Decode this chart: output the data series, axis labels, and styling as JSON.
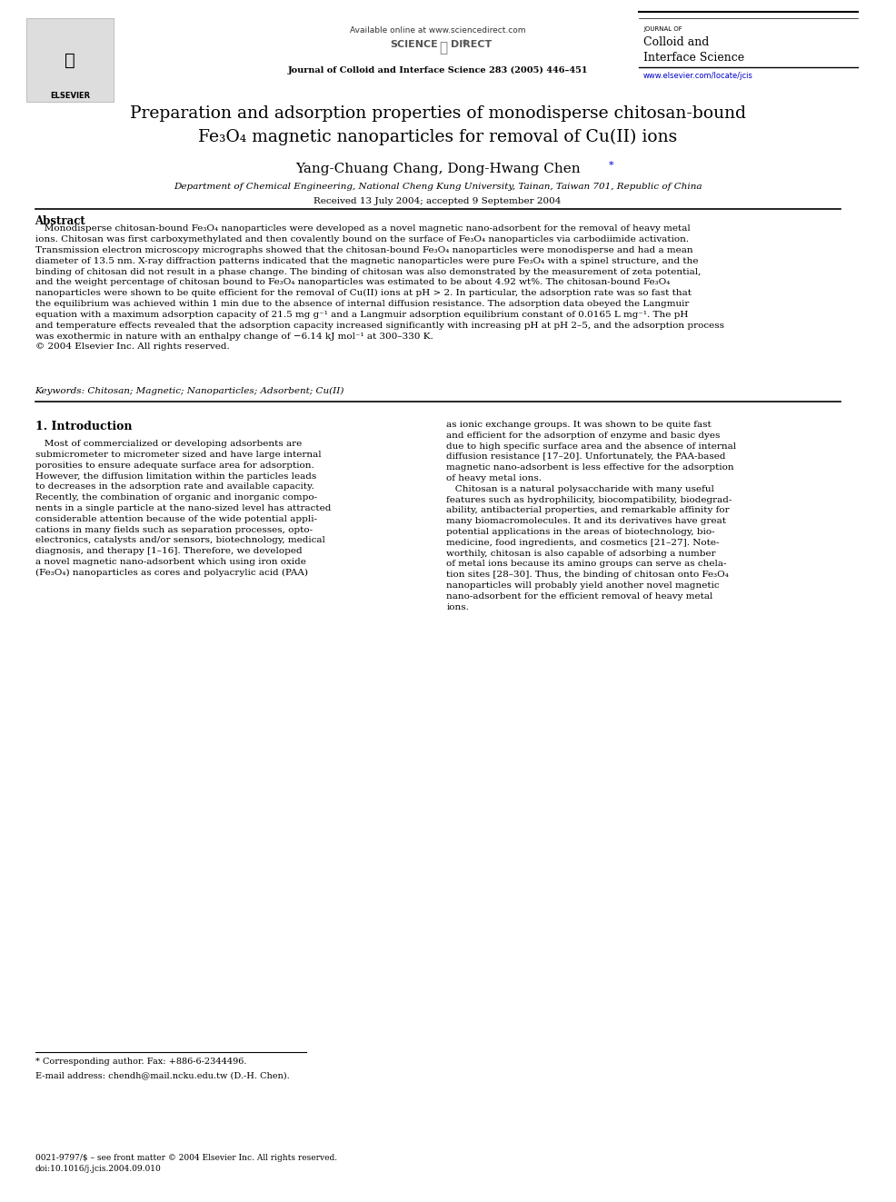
{
  "bg_color": "#ffffff",
  "page_width": 9.87,
  "page_height": 13.23,
  "header": {
    "available_online": "Available online at www.sciencedirect.com",
    "journal_ref": "Journal of Colloid and Interface Science 283 (2005) 446–451",
    "journal_name_small": "JOURNAL OF",
    "journal_name_large": "Colloid and\nInterface Science",
    "website": "www.elsevier.com/locate/jcis",
    "website_color": "#0000cc"
  },
  "title_line1": "Preparation and adsorption properties of monodisperse chitosan-bound",
  "title_line2_parts": [
    "Fe",
    "3",
    "O",
    "4",
    " magnetic nanoparticles for removal of Cu(II) ions"
  ],
  "authors": "Yang-Chuang Chang, Dong-Hwang Chen",
  "authors_star": "*",
  "affiliation": "Department of Chemical Engineering, National Cheng Kung University, Tainan, Taiwan 701, Republic of China",
  "received": "Received 13 July 2004; accepted 9 September 2004",
  "abstract_title": "Abstract",
  "abstract_text": "Monodisperse chitosan-bound Fe₃O₄ nanoparticles were developed as a novel magnetic nano-adsorbent for the removal of heavy metal ions. Chitosan was first carboxymethylated and then covalently bound on the surface of Fe₃O₄ nanoparticles via carbodiimide activation. Transmission electron microscopy micrographs showed that the chitosan-bound Fe₃O₄ nanoparticles were monodisperse and had a mean diameter of 13.5 nm. X-ray diffraction patterns indicated that the magnetic nanoparticles were pure Fe₃O₄ with a spinel structure, and the binding of chitosan did not result in a phase change. The binding of chitosan was also demonstrated by the measurement of zeta potential, and the weight percentage of chitosan bound to Fe₃O₄ nanoparticles was estimated to be about 4.92 wt%. The chitosan-bound Fe₃O₄ nanoparticles were shown to be quite efficient for the removal of Cu(II) ions at pH > 2. In particular, the adsorption rate was so fast that the equilibrium was achieved within 1 min due to the absence of internal diffusion resistance. The adsorption data obeyed the Langmuir equation with a maximum adsorption capacity of 21.5 mg g⁻¹ and a Langmuir adsorption equilibrium constant of 0.0165 L mg⁻¹. The pH and temperature effects revealed that the adsorption capacity increased significantly with increasing pH at pH 2–5, and the adsorption process was exothermic in nature with an enthalpy change of −6.14 kJ mol⁻¹ at 300–330 K.\n© 2004 Elsevier Inc. All rights reserved.",
  "keywords": "Keywords: Chitosan; Magnetic; Nanoparticles; Adsorbent; Cu(II)",
  "section1_title": "1. Introduction",
  "intro_left": "Most of commercialized or developing adsorbents are submicrometer to micrometer sized and have large internal porosities to ensure adequate surface area for adsorption. However, the diffusion limitation within the particles leads to decreases in the adsorption rate and available capacity. Recently, the combination of organic and inorganic components in a single particle at the nano-sized level has attracted considerable attention because of the wide potential applications in many fields such as separation processes, optoelectronics, catalysts and/or sensors, biotechnology, medical diagnosis, and therapy [1–16]. Therefore, we developed a novel magnetic nano-adsorbent which using iron oxide (Fe₃O₄) nanoparticles as cores and polyacrylic acid (PAA)",
  "intro_right": "as ionic exchange groups. It was shown to be quite fast and efficient for the adsorption of enzyme and basic dyes due to high specific surface area and the absence of internal diffusion resistance [17–20]. Unfortunately, the PAA-based magnetic nano-adsorbent is less effective for the adsorption of heavy metal ions.\n    Chitosan is a natural polysaccharide with many useful features such as hydrophilicity, biocompatibility, biodegradability, antibacterial properties, and remarkable affinity for many biomacromolecules. It and its derivatives have great potential applications in the areas of biotechnology, biomedicine, food ingredients, and cosmetics [21–27]. Noteworthy, chitosan is also capable of adsorbing a number of metal ions because its amino groups can serve as chelation sites [28–30]. Thus, the binding of chitosan onto Fe₃O₄ nanoparticles will probably yield another novel magnetic nano-adsorbent for the efficient removal of heavy metal ions.",
  "footnote_star": "* Corresponding author. Fax: +886-6-2344496.",
  "footnote_email": "E-mail address: chendh@mail.ncku.edu.tw (D.-H. Chen).",
  "footer_left": "0021-9797/$ – see front matter © 2004 Elsevier Inc. All rights reserved.\ndoi:10.1016/j.jcis.2004.09.010",
  "font_family": "serif"
}
